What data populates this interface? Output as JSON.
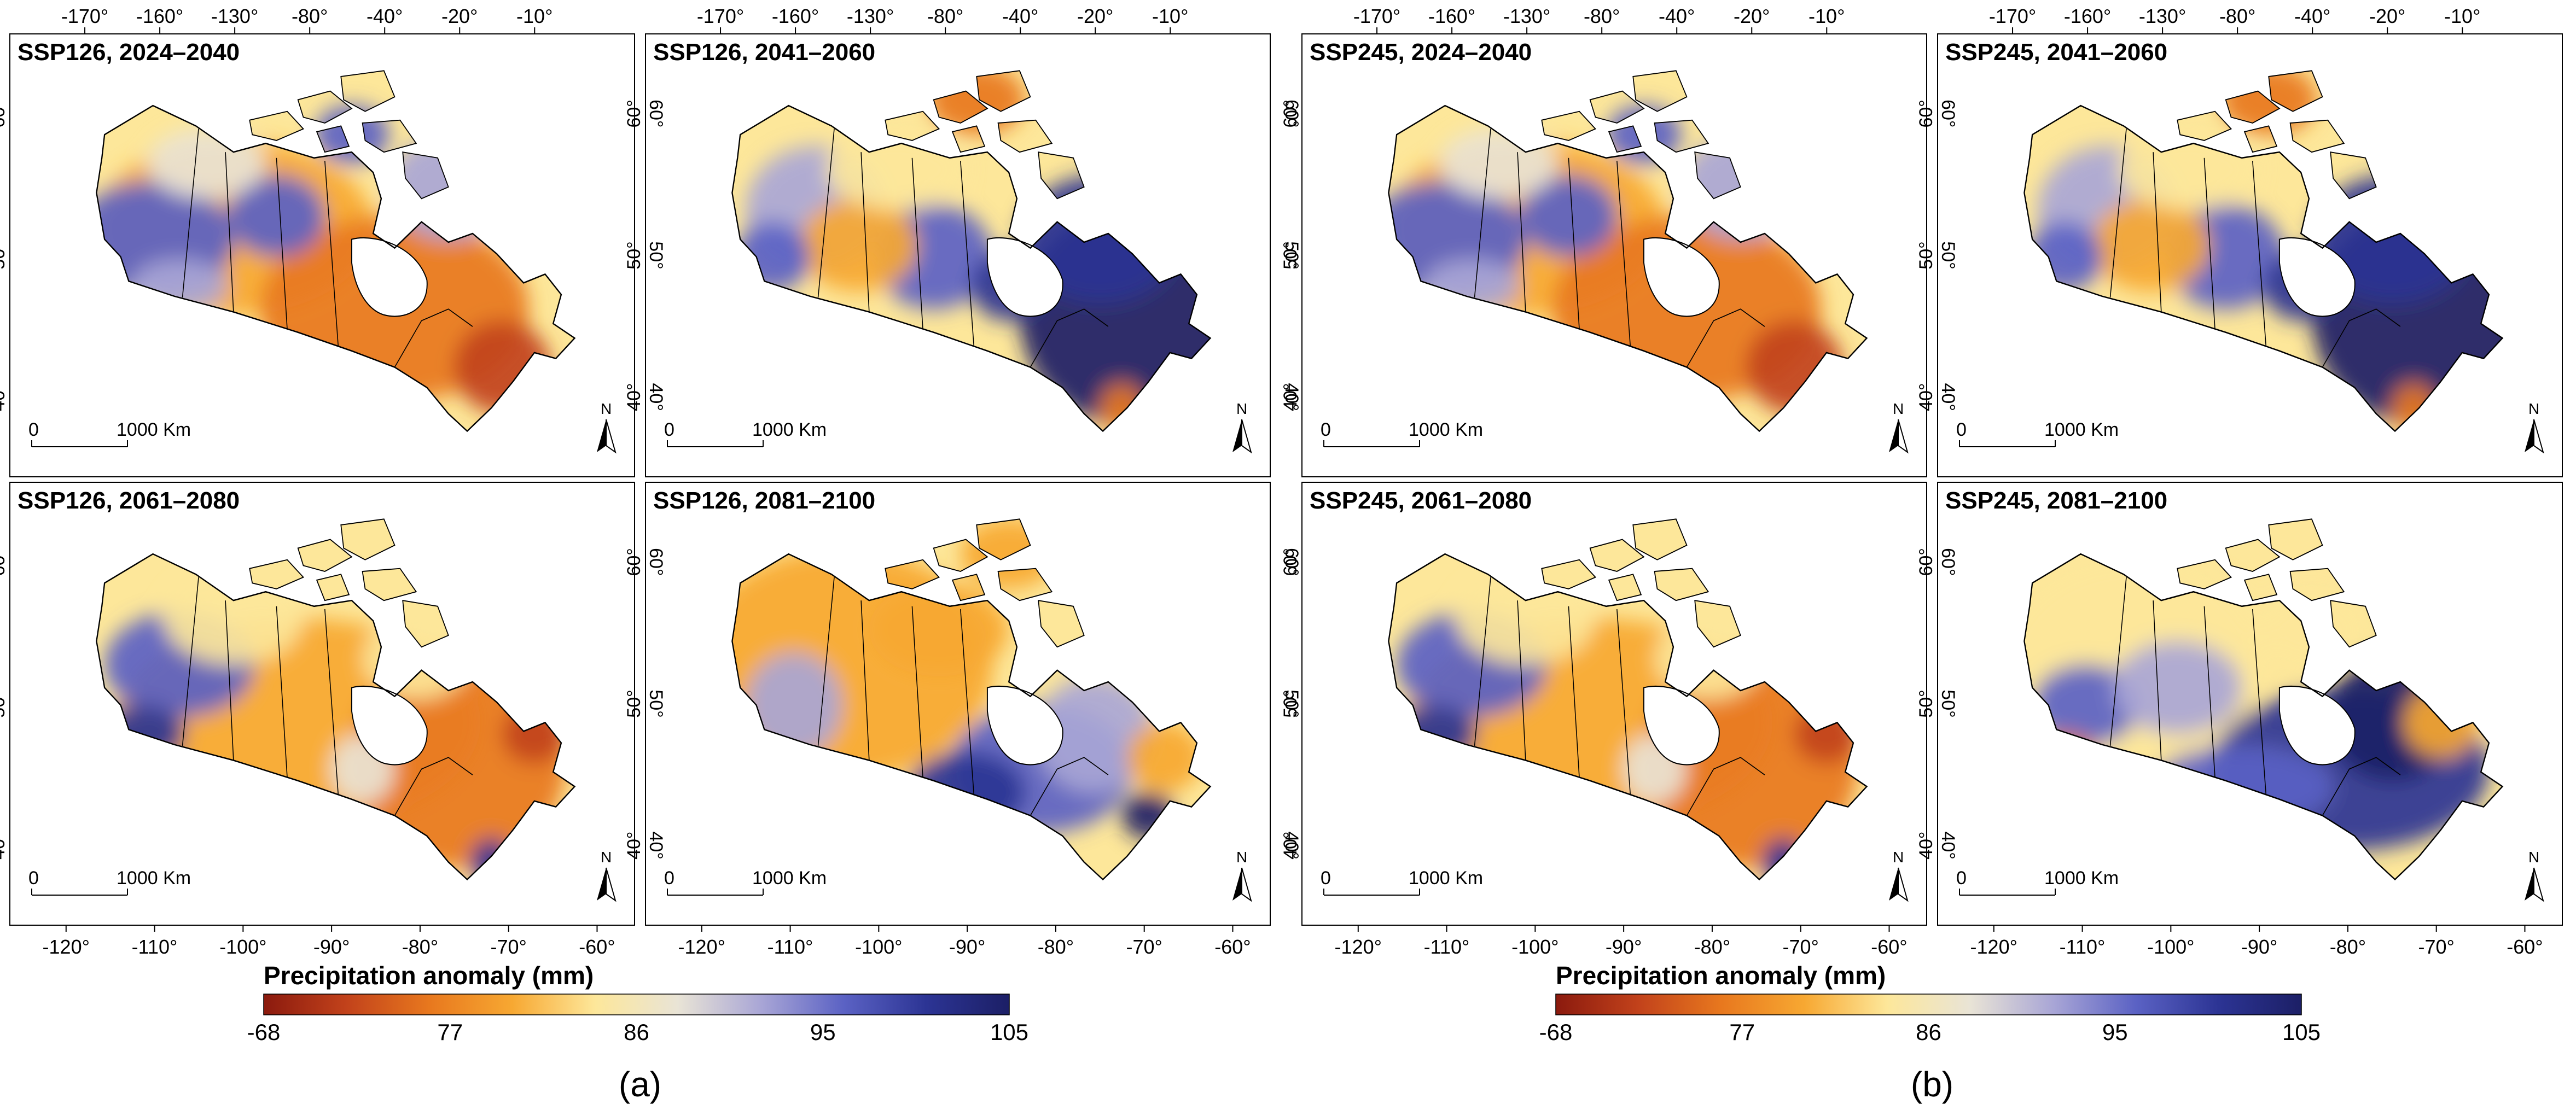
{
  "figure": {
    "colorbar": {
      "title": "Precipitation anomaly (mm)",
      "ticks": [
        "-68",
        "77",
        "86",
        "95",
        "105"
      ],
      "colors": [
        "#8b1a0e",
        "#c2421b",
        "#e8781e",
        "#f7a832",
        "#fde79a",
        "#e9e4d6",
        "#a9a6d6",
        "#5b62c4",
        "#2c3494",
        "#1c1f66"
      ]
    },
    "panel_sets": [
      {
        "label": "(a)",
        "maps": [
          {
            "title": "SSP126, 2024–2040",
            "pattern": "mix_dry"
          },
          {
            "title": "SSP126, 2041–2060",
            "pattern": "wet_east"
          },
          {
            "title": "SSP126, 2061–2080",
            "pattern": "dry"
          },
          {
            "title": "SSP126, 2081–2100",
            "pattern": "dry_west"
          }
        ]
      },
      {
        "label": "(b)",
        "maps": [
          {
            "title": "SSP245, 2024–2040",
            "pattern": "mix_dry"
          },
          {
            "title": "SSP245, 2041–2060",
            "pattern": "wet_east"
          },
          {
            "title": "SSP245, 2061–2080",
            "pattern": "dry"
          },
          {
            "title": "SSP245, 2081–2100",
            "pattern": "wet_mix"
          }
        ]
      }
    ],
    "axes": {
      "top_lon_ticks": [
        "-170°",
        "-160°",
        "-130°",
        "-80°",
        "-40°",
        "-20°",
        "-10°"
      ],
      "bottom_lon_ticks": [
        "-120°",
        "-110°",
        "-100°",
        "-90°",
        "-80°",
        "-70°",
        "-60°"
      ],
      "lat_ticks": [
        "60°",
        "50°",
        "40°"
      ]
    },
    "scale_bar": {
      "start": "0",
      "end": "1000 Km"
    },
    "north_arrow": "N"
  }
}
